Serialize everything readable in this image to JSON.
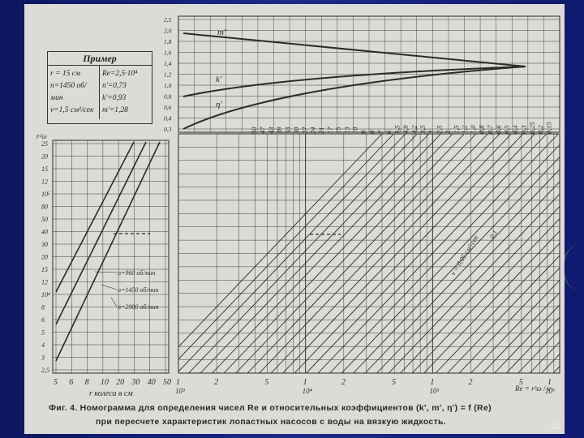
{
  "example": {
    "title": "Пример",
    "left": [
      "r = 15 см",
      "n=1450 об/мин",
      "ν=1,5 см²/сек"
    ],
    "right": [
      "Re=2,5·10⁴",
      "n'=0,73",
      "k'=0,93",
      "m'=1,28"
    ]
  },
  "top_chart": {
    "y_ticks": [
      "2,5",
      "2,0",
      "1,8",
      "1,6",
      "1,4",
      "1,2",
      "1,0",
      "0,8",
      "0,6",
      "0,4",
      "0,3"
    ],
    "curve_labels": [
      "m'",
      "k'",
      "η'"
    ]
  },
  "left_chart": {
    "y_axis_label": "r²ω",
    "y_ticks": [
      "25",
      "20",
      "15",
      "12",
      "10⁵",
      "80",
      "50",
      "40",
      "30",
      "20",
      "15",
      "12",
      "10⁴",
      "8",
      "6",
      "5",
      "4",
      "3",
      "2,5"
    ],
    "x_ticks": [
      "5",
      "6",
      "8",
      "10",
      "20",
      "30",
      "40",
      "50"
    ],
    "x_label": "r колеса в см",
    "line_labels": [
      "n=960 об/мин",
      "n=1450 об/мин",
      "n=2900 об/мин"
    ]
  },
  "main_chart": {
    "viscosity_labels": [
      "50",
      "47",
      "43",
      "39",
      "33",
      "30",
      "27",
      "24",
      "21",
      "17",
      "15",
      "13",
      "10",
      "9",
      "8",
      "7",
      "6",
      "5,5",
      "4,9",
      "4,2",
      "3,5",
      "3",
      "2,5",
      "2",
      "1,5",
      "1,2",
      "1,0",
      "0,8",
      "0,7",
      "0,6",
      "0,5",
      "0,4",
      "0,3",
      "0,25",
      "0,2",
      "0,15"
    ],
    "x_ticks": [
      "1",
      "2",
      "5",
      "1",
      "2",
      "5",
      "1",
      "2",
      "5",
      "1"
    ],
    "x_decades": [
      "10³",
      "10⁴",
      "10⁵",
      "10⁶"
    ],
    "x_label": "Re = r²ω / ν",
    "line_annotation_1": "ν = 0,05 см²/сек",
    "line_annotation_2": "0,1"
  },
  "caption": {
    "line1": "Фиг. 4. Номограмма для определения чисел Re и относительных коэффициентов (k', m', η') = f (Re)",
    "line2": "при пересчете характеристик лопастных насосов с воды на вязкую жидкость."
  },
  "page_number": "33"
}
